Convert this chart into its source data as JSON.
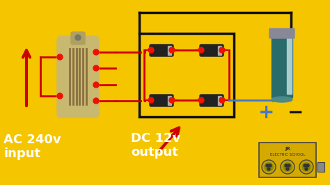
{
  "bg_color": "#F5C500",
  "text_ac": "AC 240v\ninput",
  "text_dc": "DC 12v\noutput",
  "wire_red": "#CC0000",
  "wire_black": "#111111",
  "wire_blue": "#4477CC",
  "diode_body": "#222222",
  "diode_band": "#aaaaaa",
  "cap_body": "#2a6b6b",
  "cap_top": "#888899",
  "cap_stripe": "#cccccc",
  "transformer_body": "#c8b870",
  "transformer_dark": "#8a7040",
  "node_color": "#EE1100",
  "label_white": "#FFFFFF",
  "logo_bg": "#d4aa00",
  "logo_border": "#444444"
}
